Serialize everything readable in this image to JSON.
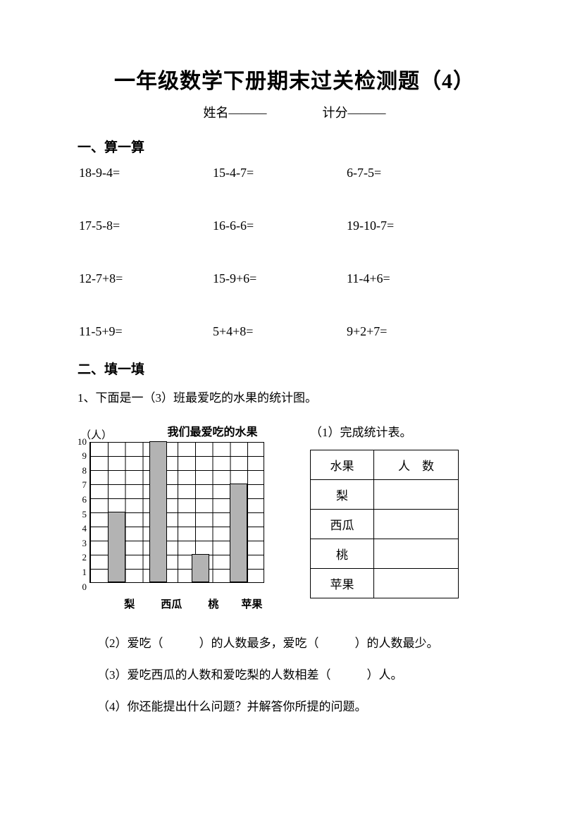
{
  "title": "一年级数学下册期末过关检测题（4）",
  "info": {
    "name_label": "姓名———",
    "score_label": "计分———"
  },
  "section1": {
    "heading": "一、算一算",
    "problems": [
      "18-9-4=",
      "15-4-7=",
      "6-7-5=",
      "17-5-8=",
      "16-6-6=",
      "19-10-7=",
      "12-7+8=",
      "15-9+6=",
      "11-4+6=",
      "11-5+9=",
      "5+4+8=",
      " 9+2+7="
    ]
  },
  "section2": {
    "heading": "二、填一填",
    "q1_intro": "1、下面是一（3）班最爱吃的水果的统计图。",
    "sub_q1": "（1）完成统计表。",
    "sub_q2": "（2）爱吃（　　　）的人数最多，爱吃（　　　）的人数最少。",
    "sub_q3": "（3）爱吃西瓜的人数和爱吃梨的人数相差（　　　）人。",
    "sub_q4": "（4）你还能提出什么问题？并解答你所提的问题。",
    "chart": {
      "type": "bar",
      "title": "我们最爱吃的水果",
      "y_unit": "（人）",
      "categories": [
        "梨",
        "西瓜",
        "桃",
        "苹果"
      ],
      "values": [
        5,
        10,
        2,
        7
      ],
      "ylim": [
        0,
        10
      ],
      "ytick_step": 1,
      "grid_cols": 10,
      "grid_rows": 10,
      "grid_cell_w": 24.8,
      "grid_cell_h": 20,
      "bar_color": "#b3b3b3",
      "bar_border": "#000000",
      "grid_color": "#000000",
      "background_color": "#ffffff",
      "bars": [
        {
          "col_start": 1,
          "value": 5
        },
        {
          "col_start": 3.4,
          "value": 10
        },
        {
          "col_start": 5.8,
          "value": 2
        },
        {
          "col_start": 8,
          "value": 7
        }
      ]
    },
    "table": {
      "header": [
        "水果",
        "人　数"
      ],
      "rows": [
        "梨",
        "西瓜",
        "桃",
        "苹果"
      ]
    }
  }
}
